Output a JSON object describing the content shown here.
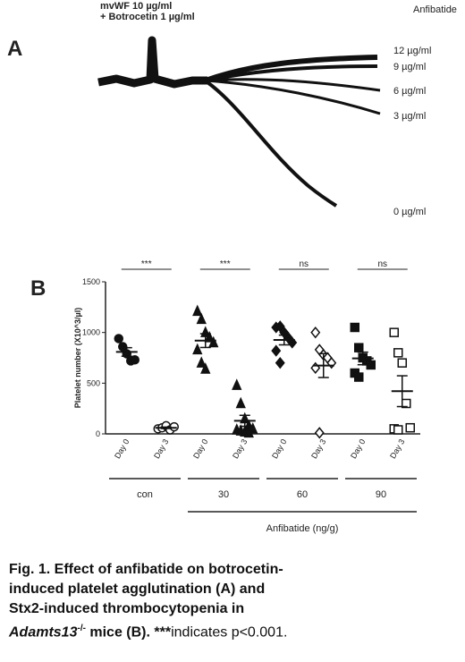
{
  "panel_a": {
    "label": "A",
    "agonist": [
      "mvWF 10 µg/ml",
      "+ Botrocetin 1 µg/ml"
    ],
    "title": "Anfibatide",
    "doses": [
      "12 µg/ml",
      "9 µg/ml",
      "6 µg/ml",
      "3 µg/ml",
      "0 µg/ml"
    ]
  },
  "chart_data": {
    "type": "scatter",
    "panel_label": "B",
    "y_label": "Platelet number (X10^3/µl)",
    "x_label": "Anfibatide (ng/g)",
    "ylim": [
      0,
      1500
    ],
    "yticks": [
      0,
      500,
      1000,
      1500
    ],
    "groups": [
      {
        "name": "con",
        "significance": "***",
        "marker": "circle",
        "series": [
          {
            "name": "Day 0",
            "filled": true,
            "values": [
              940,
              860,
              790,
              720,
              730
            ],
            "mean": 808,
            "sem": 42
          },
          {
            "name": "Day 3",
            "filled": false,
            "values": [
              50,
              60,
              80,
              40,
              70
            ],
            "mean": 60,
            "sem": 7
          }
        ]
      },
      {
        "name": "30",
        "significance": "***",
        "marker": "triangle",
        "series": [
          {
            "name": "Day 0",
            "filled": true,
            "values": [
              1210,
              1130,
              1000,
              950,
              900,
              830,
              700,
              640
            ],
            "mean": 920,
            "sem": 68
          },
          {
            "name": "Day 3",
            "filled": true,
            "values": [
              480,
              300,
              150,
              80,
              50,
              40,
              30,
              20,
              10
            ],
            "mean": 129,
            "sem": 54
          }
        ]
      },
      {
        "name": "60",
        "significance": "ns",
        "marker": "diamond",
        "series": [
          {
            "name": "Day 0",
            "filled": true,
            "values": [
              1050,
              1060,
              1000,
              950,
              900,
              820,
              700
            ],
            "mean": 926,
            "sem": 48
          },
          {
            "name": "Day 3",
            "filled": false,
            "values": [
              1000,
              830,
              780,
              750,
              700,
              650,
              10
            ],
            "mean": 674,
            "sem": 118
          }
        ]
      },
      {
        "name": "90",
        "significance": "ns",
        "marker": "square",
        "series": [
          {
            "name": "Day 0",
            "filled": true,
            "values": [
              1050,
              850,
              750,
              720,
              680,
              600,
              560
            ],
            "mean": 744,
            "sem": 62
          },
          {
            "name": "Day 3",
            "filled": false,
            "values": [
              1000,
              800,
              700,
              300,
              60,
              50,
              40
            ],
            "mean": 421,
            "sem": 152
          }
        ]
      }
    ]
  },
  "caption": {
    "lines": [
      [
        {
          "text": "Fig. 1",
          "style": "b"
        },
        {
          "text": ". Effect of anfibatide on botrocetin-",
          "style": "b"
        }
      ],
      [
        {
          "text": "induced platelet agglutination (A) and",
          "style": "b"
        }
      ],
      [
        {
          "text": "Stx2-induced thrombocytopenia in",
          "style": "b"
        }
      ],
      [
        {
          "text": "Adamts13",
          "style": "b i"
        },
        {
          "text": "-/-",
          "style": "sup"
        },
        {
          "text": " mice (B). ",
          "style": "b"
        },
        {
          "text": "***",
          "style": "b"
        },
        {
          "text": "indicates p<0.001.",
          "style": ""
        }
      ]
    ]
  }
}
